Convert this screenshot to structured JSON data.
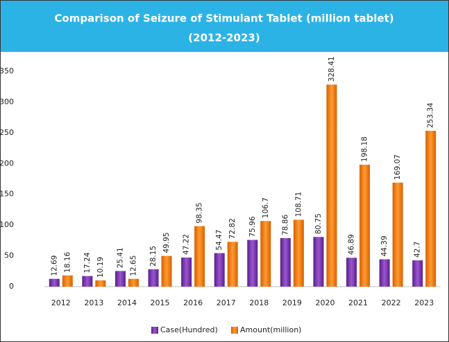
{
  "chart_data": {
    "type": "bar",
    "title": "Comparison of Seizure of Stimulant Tablet (million tablet)",
    "subtitle": "(2012-2023)",
    "categories": [
      "2012",
      "2013",
      "2014",
      "2015",
      "2016",
      "2017",
      "2018",
      "2019",
      "2020",
      "2021",
      "2022",
      "2023"
    ],
    "series": [
      {
        "name": "Case(Hundred)",
        "color": "#7a35b0",
        "values": [
          12.69,
          17.24,
          25.41,
          28.15,
          47.22,
          54.47,
          75.96,
          78.86,
          80.75,
          46.89,
          44.39,
          42.7
        ]
      },
      {
        "name": "Amount(million)",
        "color": "#f07c10",
        "values": [
          18.16,
          10.19,
          12.65,
          49.95,
          98.35,
          72.82,
          106.7,
          108.71,
          328.41,
          198.18,
          169.07,
          253.34
        ]
      }
    ],
    "ylim": [
      0,
      350
    ],
    "yticks": [
      0,
      50,
      100,
      150,
      200,
      250,
      300,
      350
    ],
    "grid": false,
    "legend": "bottom"
  }
}
